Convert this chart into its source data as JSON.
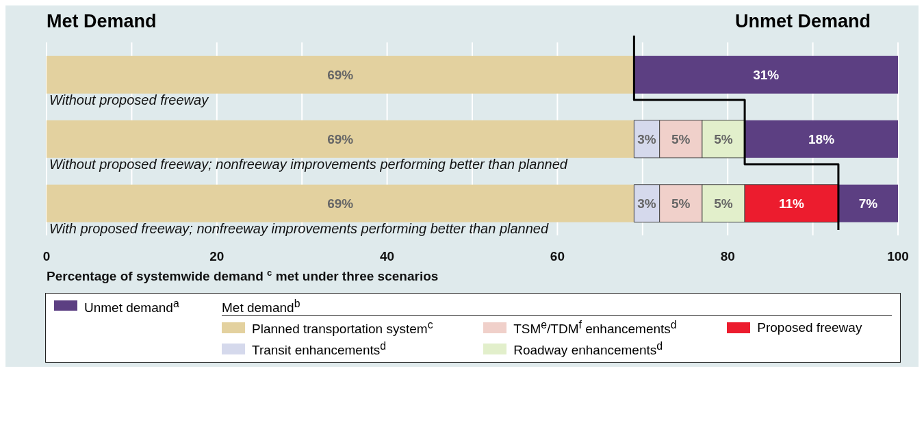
{
  "chart_data": {
    "type": "bar",
    "orientation": "horizontal",
    "stacked": true,
    "annotations": [
      "Met Demand",
      "Unmet Demand"
    ],
    "xlabel": "Percentage of systemwide demand $^{c}$ met under three scenarios",
    "categories": [
      "Without proposed freeway",
      "Without proposed freeway; nonfreeway improvements performing better than planned",
      "With proposed freeway; nonfreeway improvements performing better than planned"
    ],
    "series": [
      {
        "name": "Planned transportation system$^{c}$",
        "color": "#e3d19f",
        "values": [
          69,
          69,
          69
        ],
        "value_labels": [
          "69%",
          "69%",
          "69%"
        ]
      },
      {
        "name": "Transit enhancements$^{d}$",
        "color": "#d5d9ec",
        "values": [
          null,
          3,
          3
        ],
        "value_labels": [
          null,
          "3%",
          "3%"
        ]
      },
      {
        "name": "TSM$^{e}$/TDM$^{f}$ enhancements$^{d}$",
        "color": "#f0d0ca",
        "values": [
          null,
          5,
          5
        ],
        "value_labels": [
          null,
          "5%",
          "5%"
        ]
      },
      {
        "name": "Roadway  enhancements$^{d}$",
        "color": "#e2efcb",
        "values": [
          null,
          5,
          5
        ],
        "value_labels": [
          null,
          "5%",
          "5%"
        ]
      },
      {
        "name": "Proposed freeway",
        "color": "#ec1c2e",
        "values": [
          null,
          null,
          11
        ],
        "value_labels": [
          null,
          null,
          "11%"
        ]
      },
      {
        "name": "Unmet demand$^{a}$",
        "color": "#5c3f82",
        "values": [
          31,
          18,
          7
        ],
        "value_labels": [
          "31%",
          "18%",
          "7%"
        ]
      },
      {
        "type": "step",
        "color": "#000000",
        "values": [
          69,
          82,
          93
        ]
      }
    ],
    "legend_title": "Met demand$^{b}$",
    "legend": "bottom",
    "grid": "x",
    "xlim": [
      0,
      100
    ],
    "xticks": [
      0,
      {
        "value": 10,
        "label": null
      },
      20,
      {
        "value": 30,
        "label": null
      },
      40,
      {
        "value": 50,
        "label": null
      },
      60,
      {
        "value": 70,
        "label": null
      },
      80,
      {
        "value": 90,
        "label": null
      },
      100
    ]
  }
}
